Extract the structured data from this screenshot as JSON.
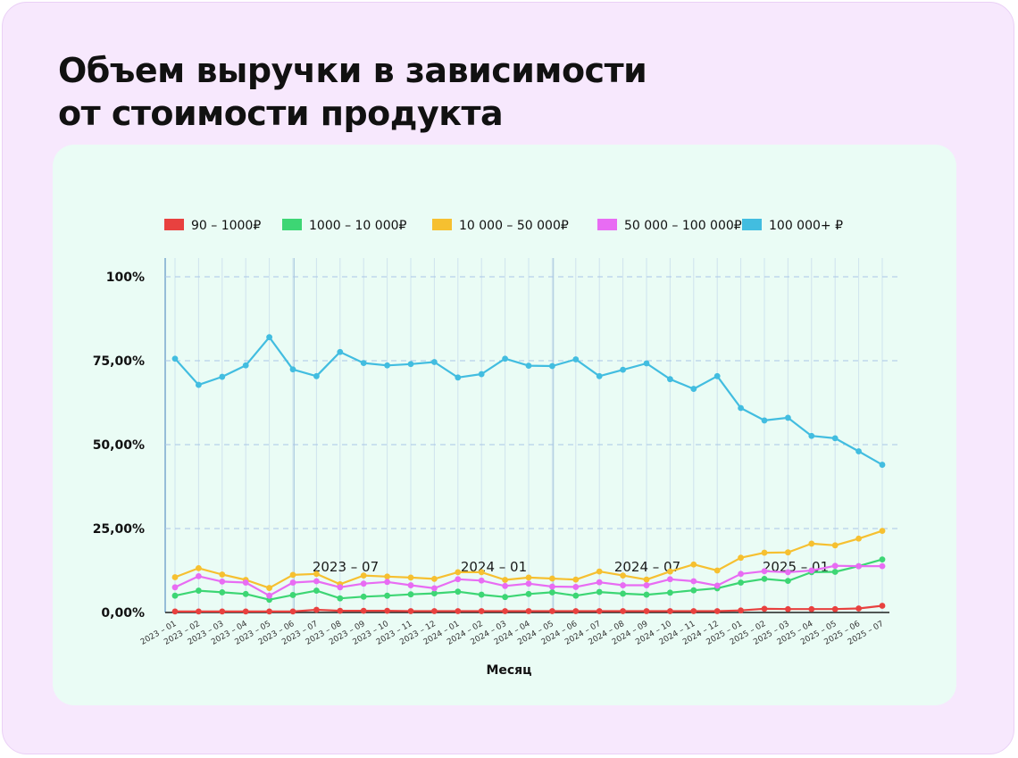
{
  "title_lines": [
    "Объем выручки в зависимости",
    "от стоимости продукта"
  ],
  "chart_data": {
    "type": "line",
    "title": "Объем выручки в зависимости от стоимости продукта",
    "xlabel": "Месяц",
    "ylabel": "",
    "ylim": [
      0,
      100
    ],
    "yticks": [
      0,
      25,
      50,
      75,
      100
    ],
    "ytick_labels": [
      "0,00%",
      "25,00%",
      "50,00%",
      "75,00%",
      "100%"
    ],
    "grid": true,
    "legend_position": "top-center",
    "x": [
      "2023 – 01",
      "2023 – 02",
      "2023 – 03",
      "2023 – 04",
      "2023 – 05",
      "2023 – 06",
      "2023 – 07",
      "2023 – 08",
      "2023 – 09",
      "2023 – 10",
      "2023 – 11",
      "2023 – 12",
      "2024 – 01",
      "2024 – 02",
      "2024 – 03",
      "2024 – 04",
      "2024 – 05",
      "2024 – 06",
      "2024 – 07",
      "2024 – 08",
      "2024 – 09",
      "2024 – 10",
      "2024 – 11",
      "2024 – 12",
      "2025 – 01",
      "2025 – 02",
      "2025 – 03",
      "2025 – 04",
      "2025 – 05",
      "2025 – 06",
      "2025 – 07"
    ],
    "annotations": [
      "2023 – 07",
      "2024 – 01",
      "2024 – 07",
      "2025 – 01"
    ],
    "series": [
      {
        "name": "90 – 1000₽",
        "color": "#e8413f",
        "values": [
          0.3,
          0.3,
          0.3,
          0.3,
          0.3,
          0.3,
          0.8,
          0.5,
          0.5,
          0.5,
          0.4,
          0.4,
          0.4,
          0.4,
          0.4,
          0.4,
          0.4,
          0.4,
          0.4,
          0.4,
          0.4,
          0.4,
          0.4,
          0.4,
          0.6,
          1.1,
          1.0,
          1.0,
          1.0,
          1.2,
          2.0
        ]
      },
      {
        "name": "1000 – 10 000₽",
        "color": "#3dd674",
        "values": [
          5,
          6.5,
          6,
          5.5,
          3.8,
          5.2,
          6.5,
          4.2,
          4.7,
          5,
          5.4,
          5.7,
          6.2,
          5.3,
          4.6,
          5.5,
          6,
          5,
          6.1,
          5.6,
          5.3,
          5.9,
          6.6,
          7.2,
          8.9,
          10,
          9.4,
          12,
          12.1,
          13.8,
          15.8
        ]
      },
      {
        "name": "10 000 – 50 000₽",
        "color": "#f6c030",
        "values": [
          10.5,
          13.2,
          11.3,
          9.7,
          7.3,
          11.2,
          11.5,
          8.4,
          11,
          10.7,
          10.4,
          10,
          12,
          12,
          9.7,
          10.4,
          10.1,
          9.8,
          12.2,
          11,
          9.8,
          12.2,
          14.3,
          12.5,
          16.3,
          17.8,
          17.9,
          20.5,
          20,
          22,
          24.3
        ]
      },
      {
        "name": "50 000 – 100 000₽",
        "color": "#e86cf3",
        "values": [
          7.5,
          10.8,
          9.2,
          8.9,
          5,
          8.9,
          9.3,
          7.5,
          8.6,
          9.1,
          8.1,
          7.2,
          9.9,
          9.5,
          7.9,
          8.6,
          7.7,
          7.6,
          9,
          8.1,
          8.1,
          9.9,
          9.3,
          8,
          11.5,
          12.3,
          12,
          12.5,
          13.9,
          13.8,
          13.8
        ]
      },
      {
        "name": "100 000+ ₽",
        "color": "#42bde0",
        "values": [
          75.6,
          67.8,
          70.2,
          73.6,
          82,
          72.4,
          70.4,
          77.6,
          74.3,
          73.6,
          74,
          74.6,
          70,
          71,
          75.6,
          73.5,
          73.4,
          75.4,
          70.4,
          72.3,
          74.2,
          69.5,
          66.6,
          70.4,
          60.9,
          57.2,
          58,
          52.6,
          51.9,
          48,
          44
        ]
      }
    ]
  }
}
